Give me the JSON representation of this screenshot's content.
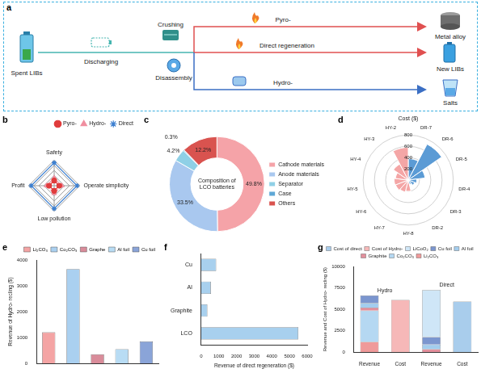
{
  "diagram": {
    "panel": "a",
    "start": "Spent LIBs",
    "steps": [
      "Discharging",
      "Crushing",
      "Disassembly"
    ],
    "routes": [
      {
        "process": "Pyro-",
        "product": "Metal alloy"
      },
      {
        "process": "Direct regeneration",
        "product": "New LIBs"
      },
      {
        "process": "Hydro-",
        "product": "Salts"
      }
    ]
  },
  "chart_data": [
    {
      "panel": "b",
      "type": "radar",
      "categories": [
        "Safety",
        "Operate simplicity",
        "Low pollution",
        "Profit"
      ],
      "series": [
        {
          "name": "Pyro-",
          "color": "#e03c3c",
          "marker": "circle",
          "line_style": "solid",
          "values": [
            1,
            1,
            1,
            1
          ]
        },
        {
          "name": "Hydro-",
          "color": "#f08fa0",
          "marker": "triangle",
          "line_style": "dashed",
          "values": [
            1.5,
            1.5,
            1.5,
            1.5
          ]
        },
        {
          "name": "Direct",
          "color": "#3c7fd0",
          "marker": "star",
          "line_style": "solid",
          "values": [
            4.5,
            4.5,
            4.5,
            4.5
          ]
        }
      ],
      "ylim": [
        0,
        5
      ],
      "yticks": [
        1,
        2,
        3,
        4,
        5
      ],
      "grid": true,
      "tick_labels": "x",
      "legend": "upper right"
    },
    {
      "panel": "c",
      "type": "doughnut",
      "title": "Composition of LCO batteries",
      "categories": [
        "Cathode materials",
        "Anode materials",
        "Separator",
        "Case",
        "Others"
      ],
      "values": [
        49.8,
        33.5,
        4.2,
        0.3,
        12.2
      ],
      "value_labels": [
        "49.8%",
        "33.5%",
        "4.2%",
        "0.3%",
        "12.2%"
      ],
      "colors": [
        "#f5a3a8",
        "#a9c8ef",
        "#8fd0e6",
        "#5fa8d6",
        "#d9534f"
      ],
      "data_labels": true,
      "legend": "right"
    },
    {
      "panel": "d",
      "type": "polar",
      "y_label": "Cost ($)",
      "categories": [
        "DR-7",
        "DR-6",
        "DR-5",
        "DR-4",
        "DR-3",
        "DR-2",
        "HY-8",
        "HY-7",
        "HY-6",
        "HY-5",
        "HY-4",
        "HY-3",
        "HY-2"
      ],
      "values": [
        380,
        720,
        300,
        150,
        120,
        80,
        200,
        220,
        240,
        250,
        230,
        320,
        580
      ],
      "colors": [
        "#5b9bd5",
        "#5b9bd5",
        "#5b9bd5",
        "#5b9bd5",
        "#5b9bd5",
        "#5b9bd5",
        "#f4a6a6",
        "#f4a6a6",
        "#f4a6a6",
        "#f4a6a6",
        "#f4a6a6",
        "#f4a6a6",
        "#f4a6a6"
      ],
      "ylim": [
        0,
        800
      ],
      "yticks": [
        0,
        200,
        400,
        600,
        800
      ],
      "grid": true
    },
    {
      "panel": "e",
      "type": "bar",
      "y_label": "Revenue of Hydro- recling ($)",
      "categories": [
        "Li₂CO₃",
        "Co₂CO₃",
        "Graphe",
        "Al foil",
        "Cu foil"
      ],
      "values": [
        1200,
        3650,
        350,
        550,
        850
      ],
      "colors": [
        "#f4a4a4",
        "#aad0f0",
        "#d98c9a",
        "#b8dcf4",
        "#8aa4d8"
      ],
      "ylim": [
        0,
        4000
      ],
      "yticks": [
        0,
        1000,
        2000,
        3000,
        4000
      ],
      "grid": false,
      "tick_labels": "y",
      "legend": "upper right"
    },
    {
      "panel": "f",
      "type": "bar",
      "orientation": "horizontal",
      "x_label": "Revenue of direct regeneration ($)",
      "categories": [
        "Cu",
        "Al",
        "Graphite",
        "LCO"
      ],
      "values": [
        850,
        550,
        350,
        5500
      ],
      "color": "#a8d0ee",
      "xlim": [
        0,
        6000
      ],
      "xticks": [
        0,
        1000,
        2000,
        3000,
        4000,
        5000,
        6000
      ],
      "grid": false
    },
    {
      "panel": "g",
      "type": "bar",
      "stacked": true,
      "y_label": "Revenue and Cost of Hydro- recling ($)",
      "categories": [
        "Revenue",
        "Cost",
        "Revenue",
        "Cost"
      ],
      "group_labels": [
        "Hydro",
        "Direct"
      ],
      "series": [
        {
          "name": "Li₂CO₃",
          "color": "#ef9a9a",
          "values": [
            1200,
            null,
            null,
            null
          ]
        },
        {
          "name": "Co₂CO₃",
          "color": "#b5d8f2",
          "values": [
            3650,
            null,
            null,
            null
          ]
        },
        {
          "name": "Graphite",
          "color": "#e38f9c",
          "values": [
            350,
            null,
            350,
            null
          ]
        },
        {
          "name": "Al foil",
          "color": "#a3cdee",
          "values": [
            550,
            null,
            550,
            null
          ]
        },
        {
          "name": "Cu foil",
          "color": "#7b96cf",
          "values": [
            850,
            null,
            850,
            null
          ]
        },
        {
          "name": "LiCoO₂",
          "color": "#cfe6f7",
          "values": [
            null,
            null,
            5500,
            null
          ]
        },
        {
          "name": "Cost of Hydro-",
          "color": "#f6b8b8",
          "values": [
            null,
            6100,
            null,
            null
          ]
        },
        {
          "name": "Cost of direct",
          "color": "#a9cdec",
          "values": [
            null,
            null,
            null,
            5900
          ]
        }
      ],
      "ylim": [
        0,
        10000
      ],
      "yticks": [
        0,
        2500,
        5000,
        7500,
        10000
      ],
      "grid": false,
      "legend": "top"
    }
  ]
}
